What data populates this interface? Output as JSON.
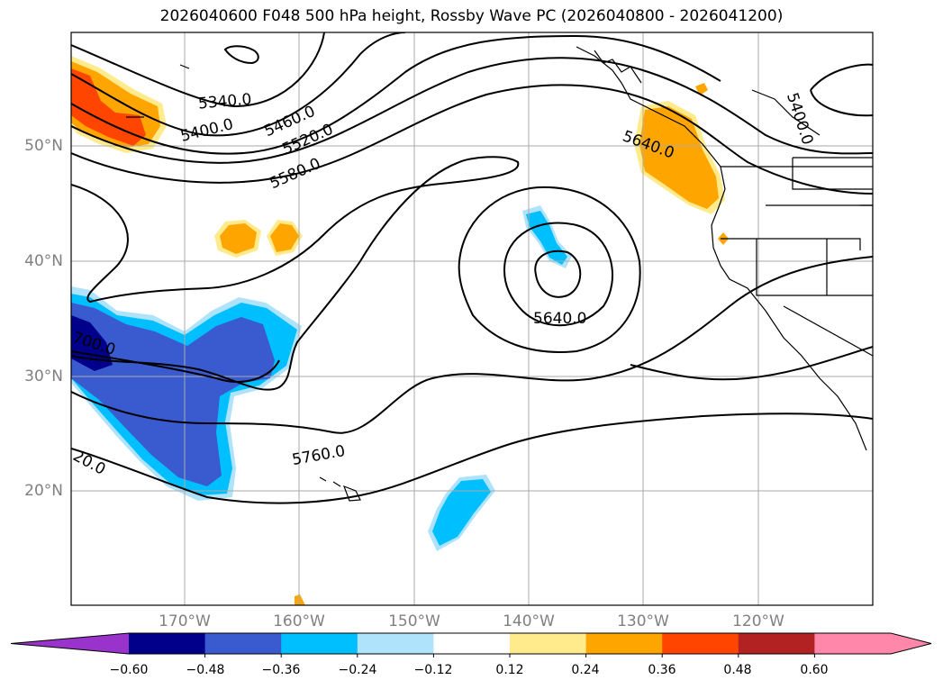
{
  "title": "2026040600 F048 500 hPa height, Rossby Wave PC (2026040800 - 2026041200)",
  "lat_labels": [
    "50°N",
    "40°N",
    "30°N",
    "20°N"
  ],
  "lon_labels": [
    "170°W",
    "160°W",
    "150°W",
    "140°W",
    "130°W",
    "120°W"
  ],
  "contour_labels": [
    "5340.0",
    "5400.0",
    "5460.0",
    "5520.0",
    "5580.0",
    "5640.0",
    "5640.0",
    "5400.0",
    "5760.0",
    "700.0",
    "20.0"
  ],
  "colorbar": {
    "ticks": [
      "−0.60",
      "−0.48",
      "−0.36",
      "−0.24",
      "−0.12",
      "0.12",
      "0.24",
      "0.36",
      "0.48",
      "0.60"
    ],
    "colors": [
      "#9933cc",
      "#00008b",
      "#3a5bd0",
      "#00bfff",
      "#aee3fb",
      "#ffffff",
      "#ffea8c",
      "#ffa500",
      "#ff4500",
      "#b22222",
      "#ff88aa"
    ]
  },
  "colors": {
    "coast": "#000000",
    "contour": "#000000",
    "grid": "#aaaaaa",
    "label_gray": "#808080"
  }
}
